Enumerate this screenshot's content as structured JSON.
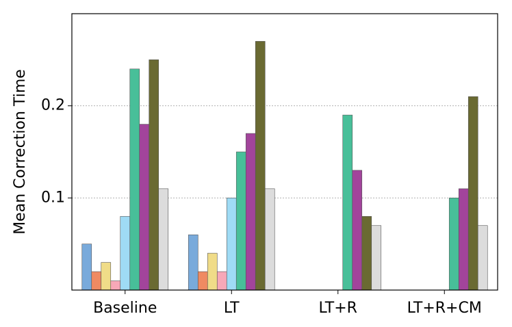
{
  "chart_data": {
    "type": "bar",
    "y_label": "Mean Correction Time",
    "categories": [
      "Baseline",
      "LT",
      "LT+R",
      "LT+R+CM"
    ],
    "series": [
      {
        "color": "#79aadb",
        "values": [
          0.05,
          0.06,
          null,
          null
        ]
      },
      {
        "color": "#ef8a62",
        "values": [
          0.02,
          0.02,
          null,
          null
        ]
      },
      {
        "color": "#f0dc88",
        "values": [
          0.03,
          0.04,
          null,
          null
        ]
      },
      {
        "color": "#f7a8b8",
        "values": [
          0.01,
          0.02,
          null,
          null
        ]
      },
      {
        "color": "#9fdbf5",
        "values": [
          0.08,
          0.1,
          null,
          null
        ]
      },
      {
        "color": "#48bf99",
        "values": [
          0.24,
          0.15,
          0.19,
          0.1
        ]
      },
      {
        "color": "#a2449b",
        "values": [
          0.18,
          0.17,
          0.13,
          0.11
        ]
      },
      {
        "color": "#6a6a32",
        "values": [
          0.25,
          0.27,
          0.08,
          0.21
        ]
      },
      {
        "color": "#dcdcdc",
        "values": [
          0.11,
          0.11,
          0.07,
          0.07
        ]
      }
    ],
    "ylim": [
      0,
      0.3
    ],
    "yticks": [
      0.1,
      0.2
    ],
    "grid": true
  }
}
